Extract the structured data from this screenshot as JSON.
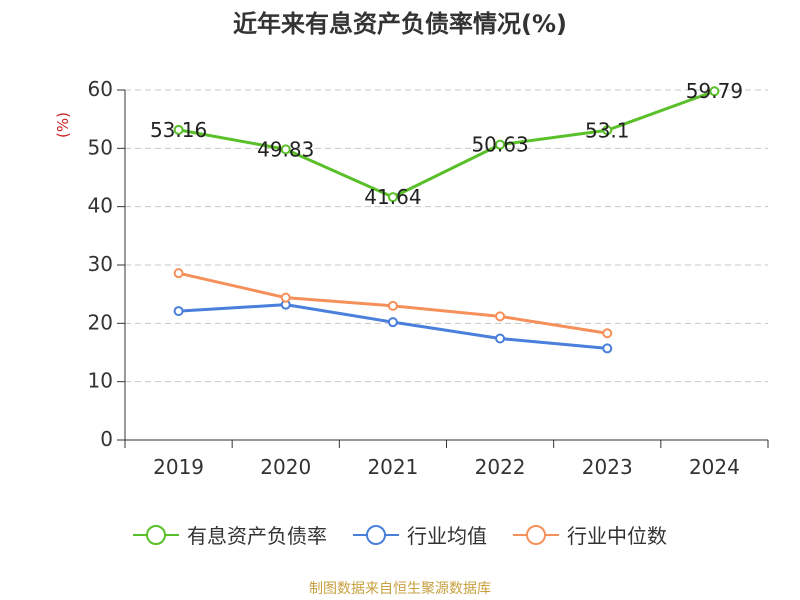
{
  "chart_data": {
    "type": "line",
    "title": "近年来有息资产负债率情况(%)",
    "ylabel": "(%)",
    "xlabel": "",
    "categories": [
      "2019",
      "2020",
      "2021",
      "2022",
      "2023",
      "2024"
    ],
    "ylim": [
      0,
      60
    ],
    "yticks": [
      0,
      10,
      20,
      30,
      40,
      50,
      60
    ],
    "grid": true,
    "legend_position": "bottom",
    "series": [
      {
        "name": "有息资产负债率",
        "color": "#5ac02a",
        "values": [
          53.16,
          49.83,
          41.64,
          50.63,
          53.1,
          59.79
        ],
        "labels": [
          "53.16",
          "49.83",
          "41.64",
          "50.63",
          "53.1",
          "59.79"
        ],
        "show_labels": true
      },
      {
        "name": "行业均值",
        "color": "#4a7fdc",
        "values": [
          22.1,
          23.2,
          20.2,
          17.4,
          15.7,
          null
        ],
        "show_labels": false
      },
      {
        "name": "行业中位数",
        "color": "#f5905a",
        "values": [
          28.6,
          24.4,
          23.0,
          21.2,
          18.3,
          null
        ],
        "show_labels": false
      }
    ]
  },
  "source_text": "制图数据来自恒生聚源数据库"
}
